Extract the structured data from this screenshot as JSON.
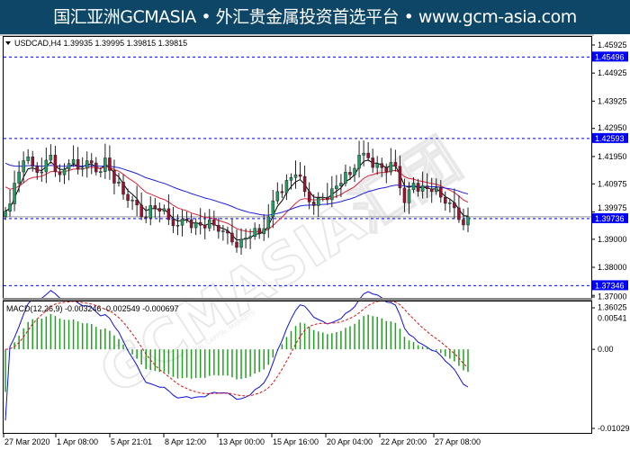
{
  "banner": {
    "text": "国汇亚洲GCMASIA • 外汇贵金属投资首选平台 • www.gcm-asia.com"
  },
  "watermark": {
    "text": "GCMASIA汇团",
    "subtext": "GLOBAL CAPITAL MARKETS"
  },
  "colors": {
    "banner_bg": "#0d4666",
    "bull": "#1fa060",
    "bear": "#a01030",
    "ma_fast": "#000000",
    "ma_mid": "#e0203a",
    "ma_slow": "#2020e0",
    "level_line": "#0000ff",
    "price_tag_bg": "#0000ff",
    "macd_hist": "#22a022",
    "macd_line": "#1010e0",
    "signal_line": "#e01010"
  },
  "chart_data": {
    "type": "candlestick",
    "symbol_header": "USDCAD,H4",
    "ohlc_header": [
      "1.39935",
      "1.39995",
      "1.39815",
      "1.39815"
    ],
    "ylim": [
      1.36025,
      1.45925
    ],
    "y_ticks": [
      "1.45925",
      "1.44925",
      "1.43925",
      "1.42950",
      "1.41950",
      "1.40975",
      "1.39975",
      "1.39000",
      "1.38000",
      "1.37000",
      "1.36025"
    ],
    "y_tick_values": [
      1.45925,
      1.44925,
      1.43925,
      1.4295,
      1.4195,
      1.40975,
      1.39975,
      1.39,
      1.38,
      1.37,
      1.36025
    ],
    "levels": [
      {
        "label": "1.45496",
        "value": 1.45496
      },
      {
        "label": "1.42593",
        "value": 1.42593
      },
      {
        "label": "1.37346",
        "value": 1.37346
      }
    ],
    "current_price": {
      "label": "1.39736",
      "value": 1.39736
    },
    "x_ticks": [
      "27 Mar 2020",
      "1 Apr 08:00",
      "5 Apr 21:01",
      "8 Apr 12:00",
      "13 Apr 00:00",
      "15 Apr 16:00",
      "20 Apr 04:00",
      "22 Apr 20:00",
      "27 Apr 08:00"
    ],
    "closes": [
      1.4,
      1.41,
      1.418,
      1.416,
      1.414,
      1.42,
      1.413,
      1.417,
      1.415,
      1.418,
      1.414,
      1.419,
      1.41,
      1.406,
      1.404,
      1.398,
      1.402,
      1.4,
      1.397,
      1.395,
      1.397,
      1.396,
      1.394,
      1.395,
      1.393,
      1.389,
      1.39,
      1.391,
      1.392,
      1.398,
      1.407,
      1.411,
      1.413,
      1.407,
      1.402,
      1.405,
      1.408,
      1.41,
      1.413,
      1.42,
      1.419,
      1.417,
      1.414,
      1.416,
      1.403,
      1.41,
      1.409,
      1.407,
      1.405,
      1.403,
      1.397,
      1.398
    ],
    "macd": {
      "label": "MACD(12,26,9) -0.003246 -0.002549 -0.000697",
      "ylim": [
        -0.010295,
        0.00541
      ],
      "y_ticks": [
        "0.00541",
        "0.00",
        "-0.010295"
      ],
      "y_tick_values": [
        0.00541,
        0,
        -0.010295
      ]
    }
  }
}
